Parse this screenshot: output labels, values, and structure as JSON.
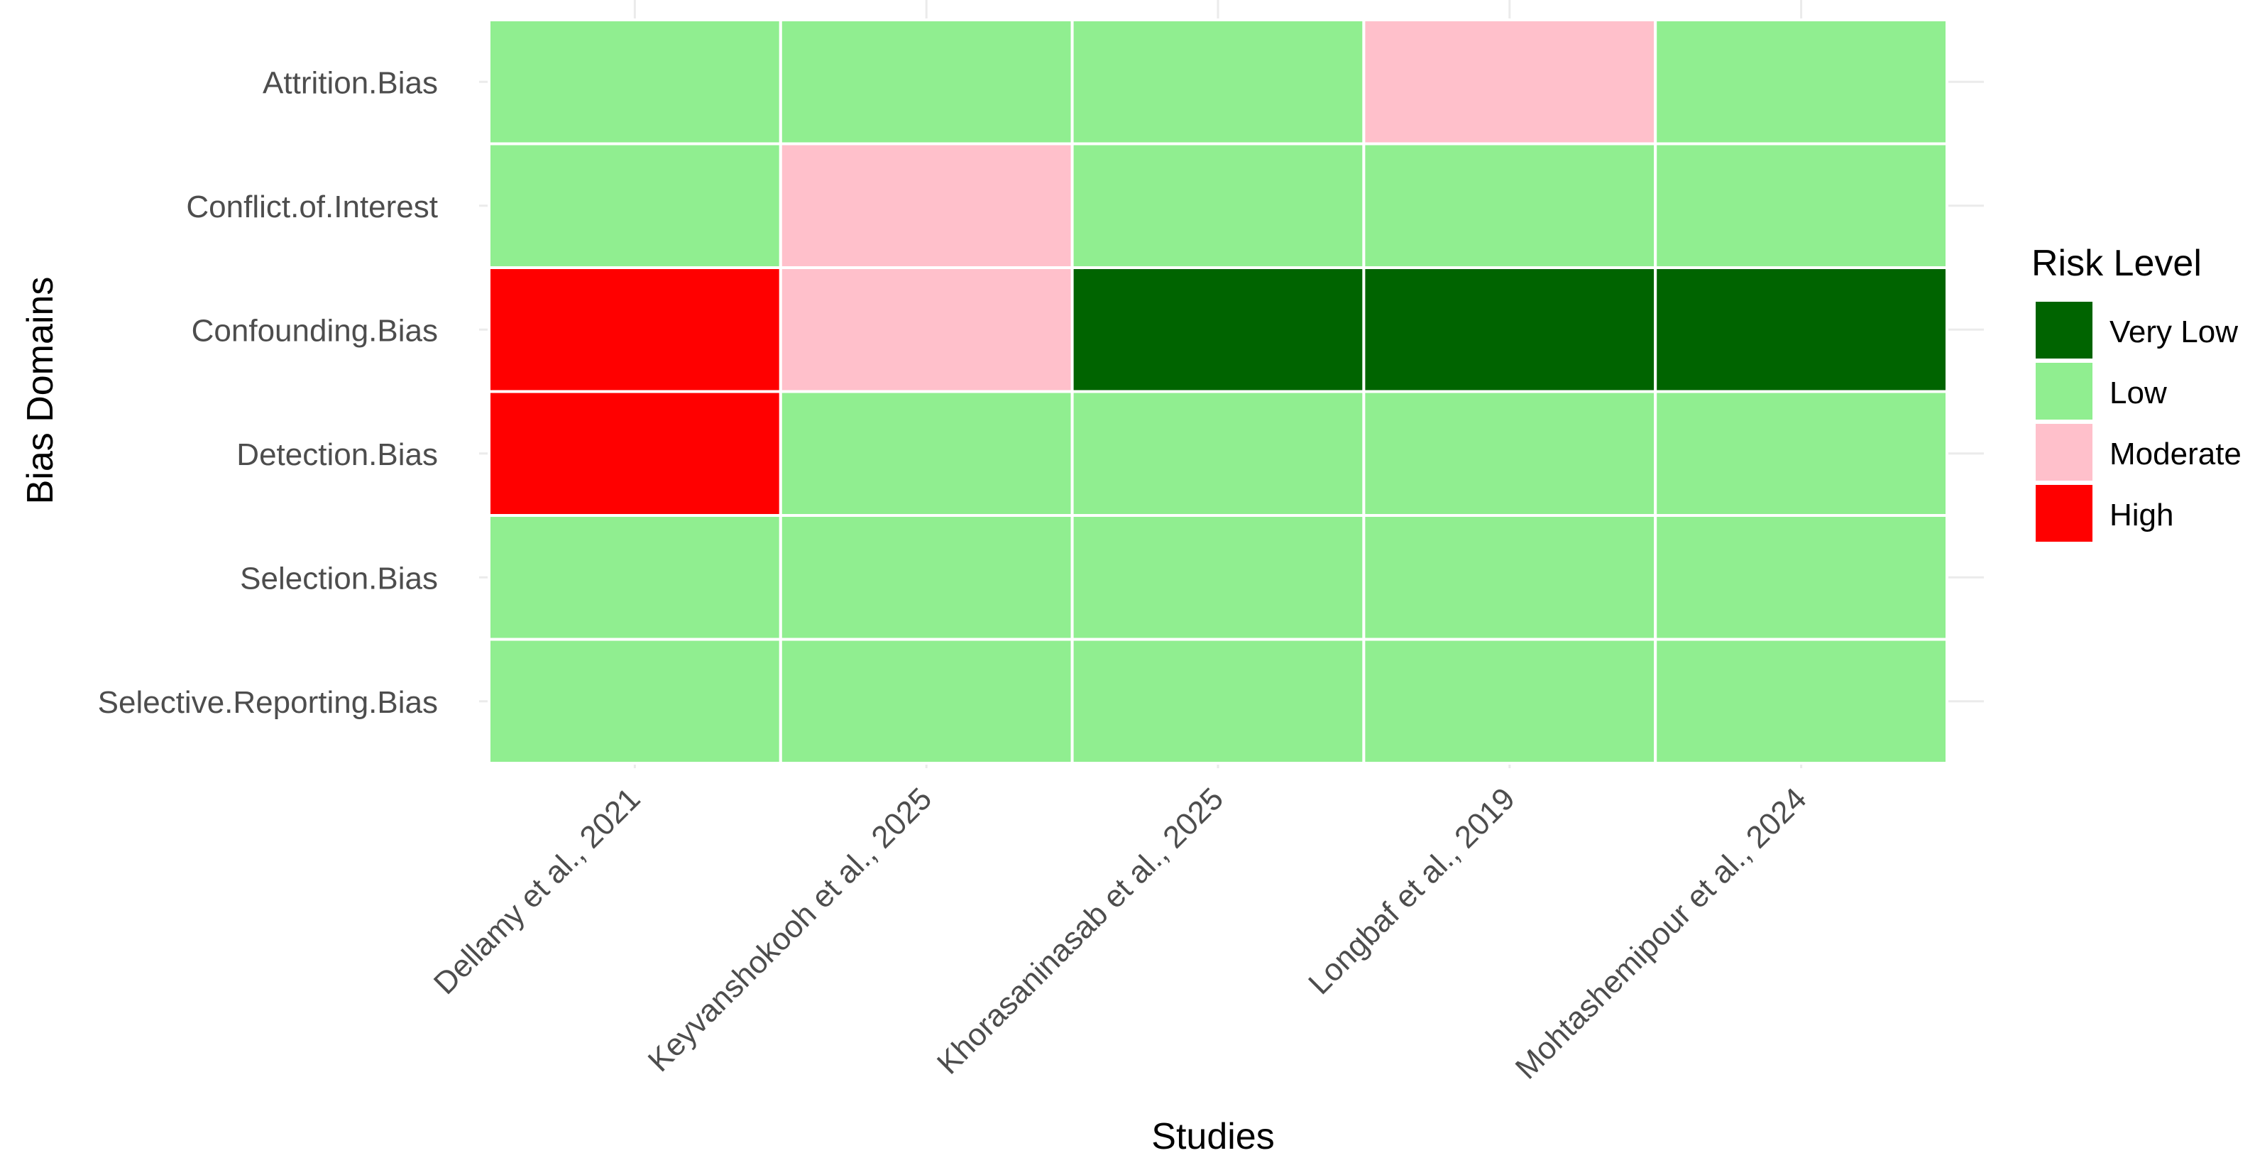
{
  "chart_data": {
    "type": "heatmap",
    "title": "",
    "xlabel": "Studies",
    "ylabel": "Bias Domains",
    "x_categories": [
      "Dellamy et al., 2021",
      "Keyvanshokooh et al., 2025",
      "Khorasaninasab et al., 2025",
      "Longbaf et al., 2019",
      "Mohtashemipour et al., 2024"
    ],
    "y_categories": [
      "Attrition.Bias",
      "Conflict.of.Interest",
      "Confounding.Bias",
      "Detection.Bias",
      "Selection.Bias",
      "Selective.Reporting.Bias"
    ],
    "values": [
      [
        "Low",
        "Low",
        "Low",
        "Moderate",
        "Low"
      ],
      [
        "Low",
        "Moderate",
        "Low",
        "Low",
        "Low"
      ],
      [
        "High",
        "Moderate",
        "Very Low",
        "Very Low",
        "Very Low"
      ],
      [
        "High",
        "Low",
        "Low",
        "Low",
        "Low"
      ],
      [
        "Low",
        "Low",
        "Low",
        "Low",
        "Low"
      ],
      [
        "Low",
        "Low",
        "Low",
        "Low",
        "Low"
      ]
    ],
    "legend": {
      "title": "Risk Level",
      "position": "right",
      "levels": [
        "Very Low",
        "Low",
        "Moderate",
        "High"
      ]
    },
    "colors": {
      "Very Low": "#006400",
      "Low": "#90EE90",
      "Moderate": "#FFC0CB",
      "High": "#FF0000"
    },
    "grid": true
  }
}
